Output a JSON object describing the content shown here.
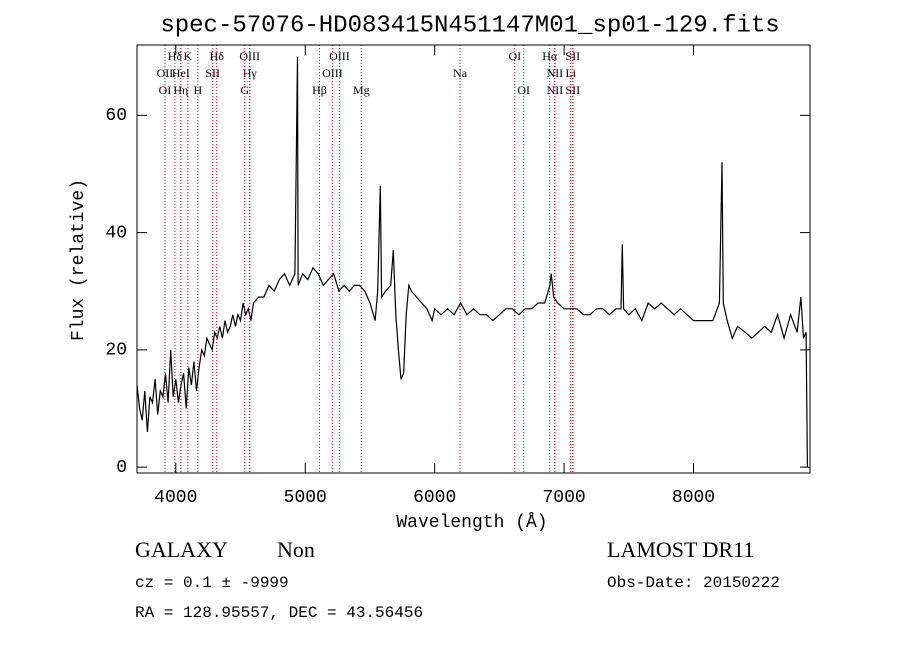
{
  "chart_data": {
    "type": "line",
    "title": "spec-57076-HD083415N451147M01_sp01-129.fits",
    "xlabel": "Wavelength (Å)",
    "ylabel": "Flux (relative)",
    "xlim": [
      3700,
      8900
    ],
    "ylim": [
      -1,
      72
    ],
    "xticks": [
      4000,
      5000,
      6000,
      7000,
      8000
    ],
    "yticks": [
      0,
      20,
      40,
      60
    ],
    "color": "#000000",
    "line_color": "#cc0000",
    "x": [
      3700,
      3720,
      3740,
      3760,
      3780,
      3800,
      3820,
      3840,
      3860,
      3880,
      3900,
      3920,
      3940,
      3960,
      3980,
      4000,
      4020,
      4040,
      4060,
      4080,
      4100,
      4120,
      4140,
      4160,
      4180,
      4200,
      4220,
      4240,
      4260,
      4280,
      4300,
      4320,
      4340,
      4360,
      4380,
      4400,
      4420,
      4440,
      4460,
      4480,
      4500,
      4520,
      4540,
      4560,
      4580,
      4600,
      4640,
      4680,
      4720,
      4760,
      4800,
      4840,
      4880,
      4920,
      4940,
      4945,
      4980,
      5020,
      5060,
      5100,
      5140,
      5180,
      5220,
      5260,
      5300,
      5340,
      5380,
      5420,
      5460,
      5500,
      5540,
      5560,
      5580,
      5590,
      5620,
      5660,
      5680,
      5700,
      5720,
      5740,
      5760,
      5780,
      5800,
      5820,
      5860,
      5900,
      5940,
      5980,
      6000,
      6050,
      6100,
      6150,
      6200,
      6250,
      6300,
      6350,
      6400,
      6450,
      6500,
      6550,
      6600,
      6650,
      6700,
      6750,
      6800,
      6850,
      6890,
      6900,
      6920,
      6950,
      7000,
      7050,
      7100,
      7150,
      7200,
      7250,
      7300,
      7350,
      7400,
      7440,
      7450,
      7460,
      7500,
      7550,
      7600,
      7650,
      7700,
      7750,
      7800,
      7850,
      7900,
      7950,
      8000,
      8050,
      8100,
      8150,
      8200,
      8220,
      8230,
      8260,
      8300,
      8340,
      8400,
      8450,
      8500,
      8550,
      8600,
      8650,
      8700,
      8750,
      8800,
      8830,
      8850,
      8870,
      8880
    ],
    "values": [
      14,
      10,
      8,
      13,
      6,
      12,
      11,
      15,
      9,
      13,
      12,
      16,
      11,
      20,
      12,
      15,
      11,
      14,
      16,
      10,
      17,
      14,
      18,
      13,
      17,
      20,
      19,
      22,
      21,
      20,
      23,
      22,
      24,
      22,
      25,
      23,
      24,
      26,
      24,
      26,
      25,
      28,
      26,
      27,
      25,
      28,
      29,
      29,
      31,
      30,
      32,
      33,
      31,
      33,
      70,
      31,
      33,
      32,
      34,
      33,
      31,
      32,
      33,
      30,
      31,
      30,
      31,
      31,
      30,
      28,
      25,
      30,
      48,
      29,
      30,
      31,
      37,
      26,
      20,
      15,
      16,
      26,
      31,
      30,
      29,
      28,
      27,
      25,
      27,
      26,
      27,
      26,
      28,
      26,
      27,
      26,
      26,
      25,
      26,
      27,
      27,
      26,
      27,
      27,
      28,
      28,
      31,
      33,
      29,
      28,
      27,
      27,
      27,
      26,
      26,
      27,
      27,
      26,
      27,
      27,
      38,
      27,
      26,
      27,
      25,
      28,
      27,
      28,
      27,
      26,
      27,
      26,
      25,
      25,
      25,
      25,
      28,
      52,
      28,
      25,
      22,
      24,
      23,
      22,
      23,
      24,
      23,
      26,
      22,
      26,
      23,
      29,
      22,
      23,
      0
    ],
    "lines": [
      [
        {
          "label": "Hδ",
          "x": 3993
        },
        {
          "label": "K",
          "x": 4093
        },
        {
          "label": "Hδ",
          "x": 4316
        },
        {
          "label": "OIII",
          "x": 4571
        },
        {
          "label": "OIII",
          "x": 5264
        },
        {
          "label": "OI",
          "x": 6619
        },
        {
          "label": "Hα",
          "x": 6889
        },
        {
          "label": "SII",
          "x": 7067
        }
      ],
      [
        {
          "label": "OII",
          "x": 3916
        },
        {
          "label": "HeI",
          "x": 4039
        },
        {
          "label": "SII",
          "x": 4285
        },
        {
          "label": "Hγ",
          "x": 4571
        },
        {
          "label": "OIII",
          "x": 5210
        },
        {
          "label": "Na",
          "x": 6196
        },
        {
          "label": "NII",
          "x": 6928
        },
        {
          "label": "Li",
          "x": 7051
        }
      ],
      [
        {
          "label": "OI",
          "x": 3916
        },
        {
          "label": "Hη",
          "x": 4039
        },
        {
          "label": "H",
          "x": 4170
        },
        {
          "label": "G",
          "x": 4532
        },
        {
          "label": "Hβ",
          "x": 5110
        },
        {
          "label": "Mg",
          "x": 5433
        },
        {
          "label": "OI",
          "x": 6688
        },
        {
          "label": "NII",
          "x": 6928
        },
        {
          "label": "SII",
          "x": 7067
        }
      ]
    ],
    "info": {
      "class": "GALAXY",
      "subclass": "Non",
      "survey": "LAMOST DR11",
      "cz": "cz = 0.1 ± -9999",
      "obs_date": "Obs-Date: 20150222",
      "coords": "RA = 128.95557, DEC =  43.56456"
    }
  }
}
